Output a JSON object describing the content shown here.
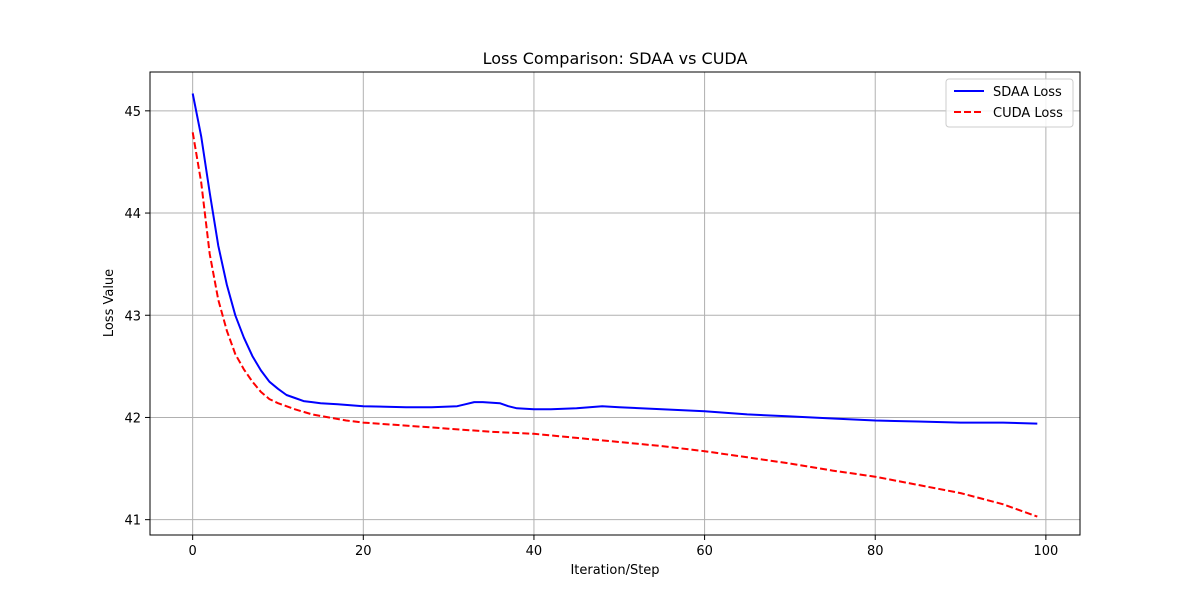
{
  "chart_data": {
    "type": "line",
    "title": "Loss Comparison: SDAA vs CUDA",
    "xlabel": "Iteration/Step",
    "ylabel": "Loss Value",
    "xlim": [
      -5,
      104
    ],
    "ylim": [
      40.85,
      45.38
    ],
    "xticks": [
      0,
      20,
      40,
      60,
      80,
      100
    ],
    "yticks": [
      41,
      42,
      43,
      44,
      45
    ],
    "grid": true,
    "legend_position": "top-right",
    "series": [
      {
        "name": "SDAA Loss",
        "color": "#0000ff",
        "dash": "solid",
        "points": [
          [
            0,
            45.17
          ],
          [
            1,
            44.75
          ],
          [
            2,
            44.2
          ],
          [
            3,
            43.68
          ],
          [
            4,
            43.3
          ],
          [
            5,
            43.0
          ],
          [
            6,
            42.78
          ],
          [
            7,
            42.6
          ],
          [
            8,
            42.46
          ],
          [
            9,
            42.35
          ],
          [
            10,
            42.28
          ],
          [
            11,
            42.22
          ],
          [
            12,
            42.19
          ],
          [
            13,
            42.16
          ],
          [
            14,
            42.15
          ],
          [
            15,
            42.14
          ],
          [
            17,
            42.13
          ],
          [
            20,
            42.11
          ],
          [
            25,
            42.1
          ],
          [
            28,
            42.1
          ],
          [
            31,
            42.11
          ],
          [
            32,
            42.13
          ],
          [
            33,
            42.15
          ],
          [
            34,
            42.15
          ],
          [
            36,
            42.14
          ],
          [
            37,
            42.11
          ],
          [
            38,
            42.09
          ],
          [
            40,
            42.08
          ],
          [
            42,
            42.08
          ],
          [
            45,
            42.09
          ],
          [
            48,
            42.11
          ],
          [
            50,
            42.1
          ],
          [
            55,
            42.08
          ],
          [
            60,
            42.06
          ],
          [
            65,
            42.03
          ],
          [
            70,
            42.01
          ],
          [
            75,
            41.99
          ],
          [
            80,
            41.97
          ],
          [
            85,
            41.96
          ],
          [
            90,
            41.95
          ],
          [
            95,
            41.95
          ],
          [
            99,
            41.94
          ]
        ]
      },
      {
        "name": "CUDA Loss",
        "color": "#ff0000",
        "dash": "dashed",
        "points": [
          [
            0,
            44.79
          ],
          [
            1,
            44.3
          ],
          [
            2,
            43.6
          ],
          [
            3,
            43.15
          ],
          [
            4,
            42.85
          ],
          [
            5,
            42.62
          ],
          [
            6,
            42.47
          ],
          [
            7,
            42.35
          ],
          [
            8,
            42.25
          ],
          [
            9,
            42.18
          ],
          [
            10,
            42.14
          ],
          [
            12,
            42.08
          ],
          [
            14,
            42.03
          ],
          [
            16,
            42.0
          ],
          [
            18,
            41.97
          ],
          [
            20,
            41.95
          ],
          [
            25,
            41.92
          ],
          [
            30,
            41.89
          ],
          [
            35,
            41.86
          ],
          [
            40,
            41.84
          ],
          [
            45,
            41.8
          ],
          [
            50,
            41.76
          ],
          [
            55,
            41.72
          ],
          [
            60,
            41.67
          ],
          [
            65,
            41.61
          ],
          [
            70,
            41.55
          ],
          [
            75,
            41.48
          ],
          [
            80,
            41.42
          ],
          [
            85,
            41.34
          ],
          [
            90,
            41.26
          ],
          [
            95,
            41.15
          ],
          [
            99,
            41.03
          ]
        ]
      }
    ]
  }
}
